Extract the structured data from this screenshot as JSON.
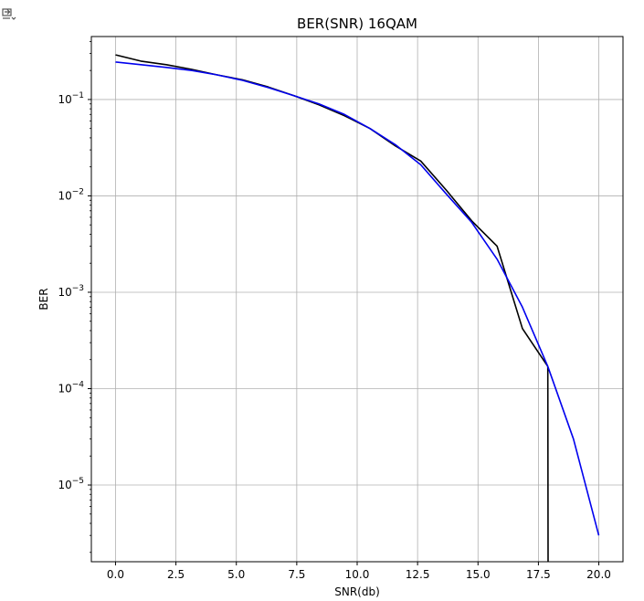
{
  "cell": {
    "output_icon": "output-toggle-icon"
  },
  "chart_data": {
    "type": "line",
    "title": "BER(SNR) 16QAM",
    "xlabel": "SNR(db)",
    "ylabel": "BER",
    "xlim": [
      -1.0,
      21.0
    ],
    "ylim": [
      1.6e-06,
      0.45
    ],
    "yscale": "log",
    "grid": true,
    "x_ticks": [
      0.0,
      2.5,
      5.0,
      7.5,
      10.0,
      12.5,
      15.0,
      17.5,
      20.0
    ],
    "x_tick_labels": [
      "0.0",
      "2.5",
      "5.0",
      "7.5",
      "10.0",
      "12.5",
      "15.0",
      "17.5",
      "20.0"
    ],
    "y_ticks": [
      {
        "value": 0.1,
        "base": "10",
        "exp": "−1"
      },
      {
        "value": 0.01,
        "base": "10",
        "exp": "−2"
      },
      {
        "value": 0.001,
        "base": "10",
        "exp": "−3"
      },
      {
        "value": 0.0001,
        "base": "10",
        "exp": "−4"
      },
      {
        "value": 1e-05,
        "base": "10",
        "exp": "−5"
      }
    ],
    "series": [
      {
        "color": "#000000",
        "x": [
          0.0,
          1.05,
          2.1,
          3.16,
          4.21,
          5.26,
          6.32,
          7.37,
          8.42,
          9.47,
          10.53,
          11.58,
          12.63,
          13.68,
          14.74,
          15.79,
          16.84,
          17.89,
          17.9
        ],
        "y": [
          0.29,
          0.25,
          0.23,
          0.205,
          0.18,
          0.16,
          0.135,
          0.11,
          0.088,
          0.068,
          0.05,
          0.033,
          0.023,
          0.0115,
          0.0055,
          0.003,
          0.00042,
          0.00017,
          1.6e-06
        ]
      },
      {
        "color": "#0000ee",
        "x": [
          0.0,
          1.05,
          2.1,
          3.16,
          4.21,
          5.26,
          6.32,
          7.37,
          8.42,
          9.47,
          10.53,
          11.58,
          12.63,
          13.68,
          14.74,
          15.79,
          16.84,
          17.89,
          18.95,
          20.0
        ],
        "y": [
          0.245,
          0.23,
          0.215,
          0.2,
          0.18,
          0.158,
          0.133,
          0.11,
          0.09,
          0.07,
          0.05,
          0.034,
          0.021,
          0.0105,
          0.0053,
          0.0022,
          0.0007,
          0.00017,
          3e-05,
          3e-06
        ]
      }
    ]
  }
}
